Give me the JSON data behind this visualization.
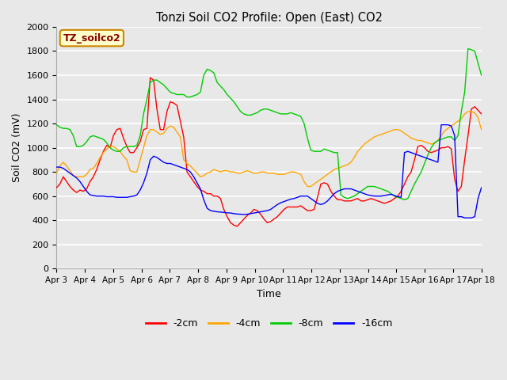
{
  "title": "Tonzi Soil CO2 Profile: Open (East) CO2",
  "xlabel": "Time",
  "ylabel": "Soil CO2 (mV)",
  "ylim": [
    0,
    2000
  ],
  "yticks": [
    0,
    200,
    400,
    600,
    800,
    1000,
    1200,
    1400,
    1600,
    1800,
    2000
  ],
  "bg_color": "#e8e8e8",
  "legend_label": "TZ_soilco2",
  "legend_bg": "#ffffcc",
  "legend_edge": "#cc8800",
  "series_colors": {
    "-2cm": "#ff0000",
    "-4cm": "#ffa500",
    "-8cm": "#00cc00",
    "-16cm": "#0000ff"
  },
  "x_tick_labels": [
    "Apr 3",
    "Apr 4",
    "Apr 5",
    "Apr 6",
    "Apr 7",
    "Apr 8",
    "Apr 9",
    "Apr 10",
    "Apr 11",
    "Apr 12",
    "Apr 13",
    "Apr 14",
    "Apr 15",
    "Apr 16",
    "Apr 17",
    "Apr 18"
  ],
  "data_2cm": [
    670,
    700,
    760,
    720,
    680,
    650,
    630,
    650,
    640,
    660,
    720,
    760,
    820,
    900,
    970,
    1020,
    1000,
    1100,
    1150,
    1160,
    1080,
    1010,
    960,
    960,
    1000,
    1050,
    1150,
    1160,
    1580,
    1560,
    1320,
    1150,
    1150,
    1300,
    1380,
    1370,
    1350,
    1220,
    1090,
    800,
    760,
    720,
    680,
    650,
    640,
    620,
    620,
    600,
    600,
    580,
    490,
    430,
    380,
    360,
    350,
    380,
    410,
    440,
    460,
    490,
    480,
    450,
    410,
    380,
    390,
    410,
    430,
    460,
    490,
    510,
    510,
    510,
    510,
    520,
    500,
    480,
    480,
    490,
    590,
    700,
    710,
    700,
    640,
    600,
    570,
    570,
    560,
    560,
    560,
    570,
    580,
    560,
    560,
    570,
    580,
    570,
    560,
    550,
    540,
    550,
    560,
    580,
    600,
    640,
    700,
    760,
    800,
    900,
    1010,
    1020,
    1000,
    970,
    960,
    970,
    980,
    1000,
    1000,
    1010,
    990,
    740,
    640,
    680,
    900,
    1100,
    1320,
    1340,
    1310,
    1280
  ],
  "data_4cm": [
    790,
    850,
    880,
    850,
    810,
    770,
    760,
    760,
    760,
    780,
    820,
    830,
    870,
    920,
    960,
    990,
    1010,
    1010,
    990,
    970,
    930,
    900,
    810,
    800,
    800,
    900,
    1000,
    1100,
    1150,
    1150,
    1130,
    1110,
    1120,
    1160,
    1180,
    1170,
    1130,
    1090,
    900,
    870,
    850,
    820,
    790,
    760,
    770,
    790,
    800,
    820,
    810,
    800,
    810,
    810,
    800,
    800,
    790,
    790,
    800,
    810,
    800,
    790,
    790,
    800,
    800,
    790,
    790,
    790,
    780,
    780,
    780,
    790,
    800,
    800,
    790,
    780,
    720,
    680,
    680,
    700,
    720,
    740,
    760,
    780,
    800,
    820,
    830,
    840,
    850,
    860,
    880,
    920,
    970,
    1000,
    1030,
    1050,
    1070,
    1090,
    1100,
    1110,
    1120,
    1130,
    1140,
    1150,
    1150,
    1140,
    1120,
    1100,
    1080,
    1070,
    1060,
    1060,
    1050,
    1040,
    1030,
    1040,
    1060,
    1100,
    1140,
    1160,
    1180,
    1200,
    1220,
    1240,
    1280,
    1300,
    1300,
    1290,
    1250,
    1150
  ],
  "data_8cm": [
    1190,
    1170,
    1160,
    1160,
    1150,
    1100,
    1010,
    1010,
    1020,
    1050,
    1090,
    1100,
    1090,
    1080,
    1070,
    1040,
    1000,
    980,
    970,
    970,
    1000,
    1010,
    1010,
    1010,
    1020,
    1100,
    1280,
    1400,
    1540,
    1560,
    1560,
    1540,
    1520,
    1490,
    1460,
    1450,
    1440,
    1440,
    1440,
    1420,
    1420,
    1430,
    1440,
    1460,
    1600,
    1650,
    1640,
    1620,
    1540,
    1510,
    1480,
    1440,
    1410,
    1380,
    1340,
    1300,
    1280,
    1270,
    1270,
    1280,
    1290,
    1310,
    1320,
    1320,
    1310,
    1300,
    1290,
    1280,
    1280,
    1280,
    1290,
    1280,
    1270,
    1260,
    1200,
    1080,
    980,
    970,
    970,
    970,
    990,
    980,
    970,
    960,
    960,
    610,
    590,
    580,
    590,
    600,
    620,
    640,
    660,
    680,
    680,
    680,
    670,
    660,
    650,
    640,
    620,
    600,
    590,
    580,
    570,
    580,
    640,
    700,
    750,
    800,
    870,
    940,
    1000,
    1040,
    1060,
    1070,
    1080,
    1090,
    1090,
    1060,
    1100,
    1300,
    1460,
    1820,
    1810,
    1800,
    1700,
    1600
  ],
  "data_16cm": [
    840,
    840,
    830,
    810,
    790,
    770,
    750,
    720,
    680,
    640,
    610,
    605,
    600,
    600,
    600,
    595,
    595,
    595,
    590,
    590,
    590,
    590,
    595,
    600,
    610,
    650,
    710,
    790,
    900,
    930,
    920,
    900,
    880,
    870,
    870,
    860,
    850,
    840,
    830,
    820,
    800,
    760,
    710,
    660,
    570,
    500,
    480,
    475,
    470,
    468,
    465,
    462,
    460,
    455,
    452,
    450,
    448,
    450,
    455,
    460,
    465,
    470,
    475,
    480,
    490,
    510,
    530,
    545,
    555,
    565,
    575,
    580,
    590,
    600,
    600,
    600,
    580,
    560,
    540,
    530,
    540,
    560,
    590,
    620,
    640,
    650,
    660,
    660,
    660,
    650,
    640,
    630,
    620,
    610,
    605,
    600,
    600,
    600,
    605,
    610,
    615,
    605,
    595,
    590,
    960,
    970,
    960,
    950,
    940,
    930,
    920,
    910,
    900,
    890,
    880,
    1190,
    1190,
    1190,
    1180,
    1100,
    430,
    430,
    420,
    420,
    420,
    430,
    580,
    670
  ]
}
